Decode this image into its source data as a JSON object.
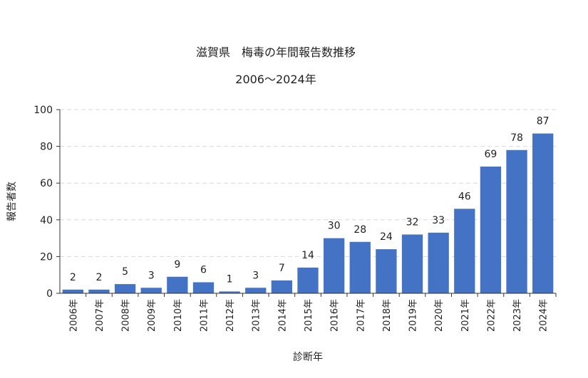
{
  "chart_data": {
    "type": "bar",
    "title": "滋賀県　梅毒の年間報告数推移",
    "subtitle": "2006～2024年",
    "xlabel": "診断年",
    "ylabel": "報告者数",
    "ylim": [
      0,
      100
    ],
    "yticks": [
      0,
      20,
      40,
      60,
      80,
      100
    ],
    "grid": true,
    "categories": [
      "2006年",
      "2007年",
      "2008年",
      "2009年",
      "2010年",
      "2011年",
      "2012年",
      "2013年",
      "2014年",
      "2015年",
      "2016年",
      "2017年",
      "2018年",
      "2019年",
      "2020年",
      "2021年",
      "2022年",
      "2023年",
      "2024年"
    ],
    "values": [
      2,
      2,
      5,
      3,
      9,
      6,
      1,
      3,
      7,
      14,
      30,
      28,
      24,
      32,
      33,
      46,
      69,
      78,
      87
    ],
    "bar_color": "#4472c4"
  }
}
